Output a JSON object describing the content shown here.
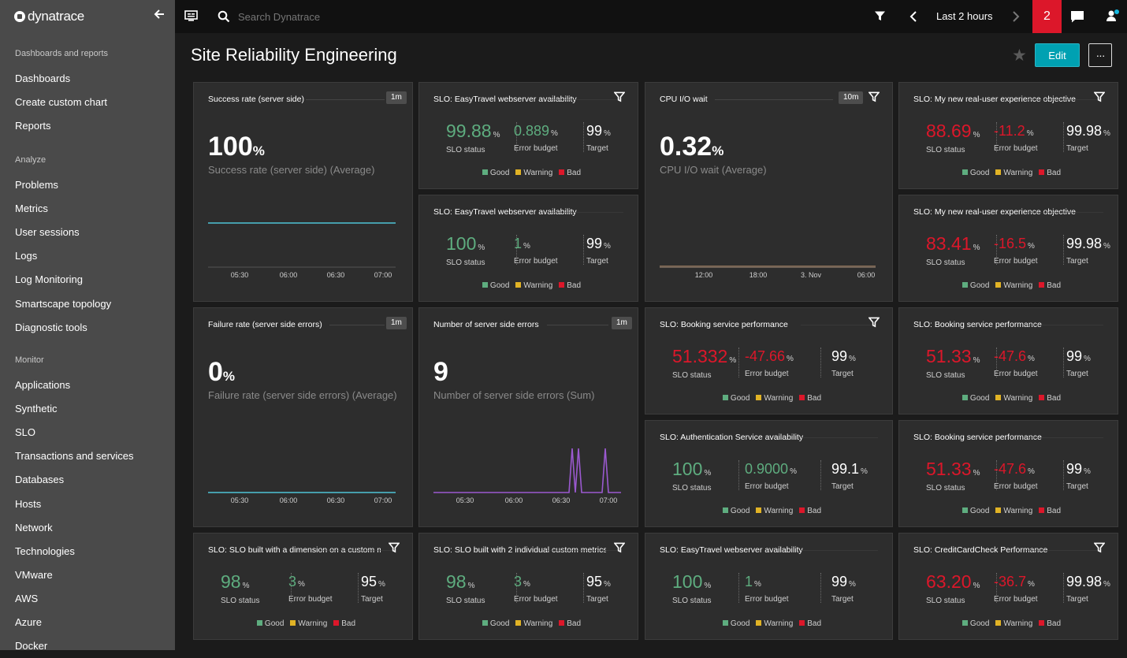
{
  "app": {
    "logo_text": "dynatrace"
  },
  "sidebar": {
    "sections": [
      {
        "label": "Dashboards and reports",
        "items": [
          "Dashboards",
          "Create custom chart",
          "Reports"
        ]
      },
      {
        "label": "Analyze",
        "items": [
          "Problems",
          "Metrics",
          "User sessions",
          "Logs",
          "Log Monitoring",
          "Smartscape topology",
          "Diagnostic tools"
        ]
      },
      {
        "label": "Monitor",
        "items": [
          "Applications",
          "Synthetic",
          "SLO",
          "Transactions and services",
          "Databases",
          "Hosts",
          "Network",
          "Technologies",
          "VMware",
          "AWS",
          "Azure",
          "Docker"
        ]
      }
    ]
  },
  "topbar": {
    "search_placeholder": "Search Dynatrace",
    "timeframe": "Last 2 hours",
    "alert_count": "2"
  },
  "page": {
    "title": "Site Reliability Engineering",
    "edit_label": "Edit",
    "more_label": "···"
  },
  "legend": {
    "good": "Good",
    "warning": "Warning",
    "bad": "Bad"
  },
  "slo_labels": {
    "status": "SLO status",
    "error_budget": "Error budget",
    "target": "Target",
    "unit": "%"
  },
  "colors": {
    "good": "#5ead7f",
    "warning": "#e1b325",
    "bad": "#dc172a",
    "accent": "#00a1b2"
  },
  "tiles": {
    "success_rate": {
      "title": "Success rate (server side)",
      "resolution": "1m",
      "value": "100",
      "unit": "%",
      "subtitle": "Success rate (server side) (Average)",
      "x_labels": [
        "05:30",
        "06:00",
        "06:30",
        "07:00"
      ]
    },
    "cpu_io": {
      "title": "CPU I/O wait",
      "resolution": "10m",
      "value": "0.32",
      "unit": "%",
      "subtitle": "CPU I/O wait (Average)",
      "x_labels": [
        "12:00",
        "18:00",
        "3. Nov",
        "06:00"
      ]
    },
    "failure_rate": {
      "title": "Failure rate (server side errors)",
      "resolution": "1m",
      "value": "0",
      "unit": "%",
      "subtitle": "Failure rate (server side errors) (Average)",
      "x_labels": [
        "05:30",
        "06:00",
        "06:30",
        "07:00"
      ]
    },
    "server_errors": {
      "title": "Number of server side errors",
      "resolution": "1m",
      "value": "9",
      "subtitle": "Number of server side errors (Sum)",
      "x_labels": [
        "05:30",
        "06:00",
        "06:30",
        "07:00"
      ]
    }
  },
  "slos": [
    {
      "title": "SLO: EasyTravel webserver availability",
      "status": "99.88",
      "error_budget": "0.889",
      "target": "99"
    },
    {
      "title": "SLO: EasyTravel webserver availability",
      "status": "100",
      "error_budget": "1",
      "target": "99"
    },
    {
      "title": "SLO: My new real-user experience objective",
      "status": "88.69",
      "error_budget": "-11.2",
      "target": "99.98"
    },
    {
      "title": "SLO: My new real-user experience objective",
      "status": "83.41",
      "error_budget": "-16.5",
      "target": "99.98"
    },
    {
      "title": "SLO: Booking service performance",
      "status": "51.332",
      "error_budget": "-47.66",
      "target": "99"
    },
    {
      "title": "SLO: Booking service performance",
      "status": "51.33",
      "error_budget": "-47.6",
      "target": "99"
    },
    {
      "title": "SLO: Authentication Service availability",
      "status": "100",
      "error_budget": "0.9000",
      "target": "99.1"
    },
    {
      "title": "SLO: Booking service performance",
      "status": "51.33",
      "error_budget": "-47.6",
      "target": "99"
    },
    {
      "title": "SLO: SLO built with a dimension on a custom metric",
      "status": "98",
      "error_budget": "3",
      "target": "95"
    },
    {
      "title": "SLO: SLO built with 2 individual custom metrics",
      "status": "98",
      "error_budget": "3",
      "target": "95"
    },
    {
      "title": "SLO: EasyTravel webserver availability",
      "status": "100",
      "error_budget": "1",
      "target": "99"
    },
    {
      "title": "SLO: CreditCardCheck Performance",
      "status": "63.20",
      "error_budget": "-36.7",
      "target": "99.98"
    }
  ]
}
